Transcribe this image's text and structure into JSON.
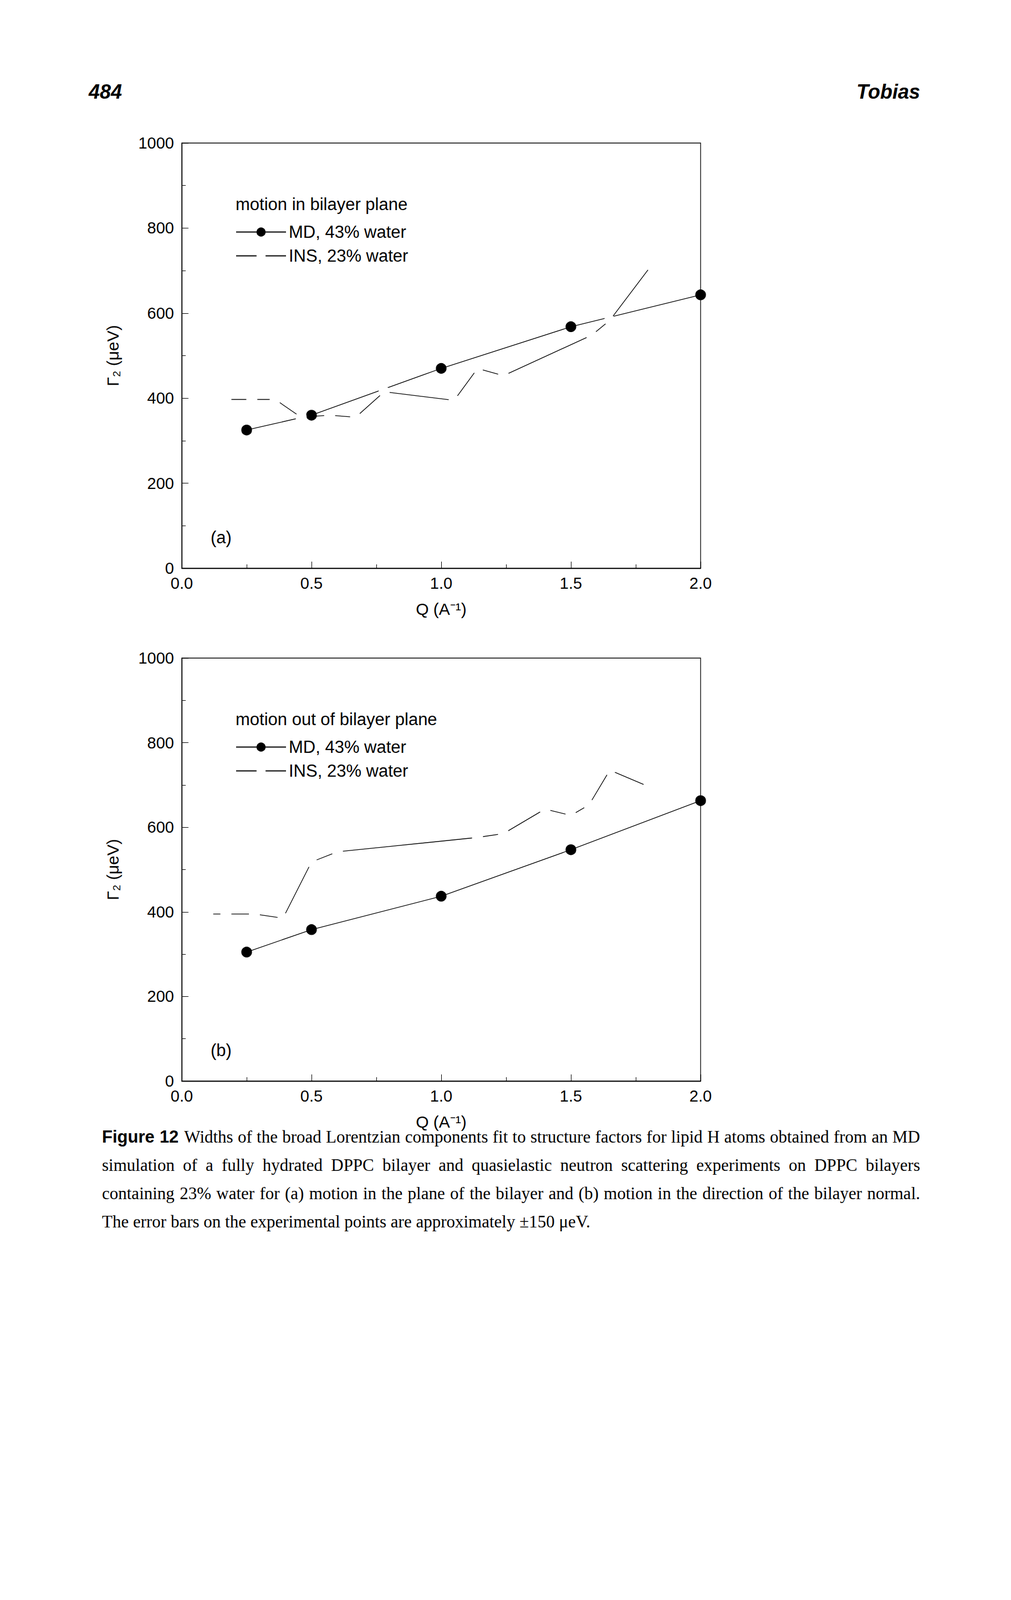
{
  "page": {
    "number": "484",
    "author": "Tobias"
  },
  "chart_data": [
    {
      "type": "line",
      "title": "motion in bilayer plane",
      "annotation": "(a)",
      "x_label": "Q (A⁻¹)",
      "y_label": "Γ₂ (μeV)",
      "xlim": [
        0,
        2
      ],
      "xticks": [
        {
          "value": 0,
          "label": "0.0"
        },
        {
          "value": 0.5,
          "label": "0.5"
        },
        {
          "value": 1,
          "label": "1.0"
        },
        {
          "value": 1.5,
          "label": "1.5"
        },
        {
          "value": 2,
          "label": "2.0"
        }
      ],
      "ylim": [
        0,
        1000
      ],
      "yticks": [
        0,
        200,
        400,
        600,
        800,
        1000
      ],
      "legend": "upper left",
      "series": [
        {
          "name": "MD, 43% water",
          "color": "#000000",
          "marker": "filled_circle",
          "line_style": "solid",
          "x": [
            0.25,
            0.5,
            1.0,
            1.5,
            2.0
          ],
          "values": [
            325,
            360,
            470,
            568,
            643
          ]
        },
        {
          "name": "INS, 23% water",
          "color": "#000000",
          "marker": "open_circle",
          "line_style": "solid",
          "x": [
            0.17,
            0.27,
            0.36,
            0.46,
            0.57,
            0.67,
            0.78,
            1.05,
            1.14,
            1.24,
            1.58,
            1.65,
            1.81
          ],
          "values": [
            397,
            397,
            397,
            355,
            360,
            355,
            415,
            395,
            470,
            453,
            548,
            583,
            712
          ]
        }
      ]
    },
    {
      "type": "line",
      "title": "motion out of bilayer plane",
      "annotation": "(b)",
      "x_label": "Q (A⁻¹)",
      "y_label": "Γ₂ (μeV)",
      "xlim": [
        0,
        2
      ],
      "xticks": [
        {
          "value": 0,
          "label": "0.0"
        },
        {
          "value": 0.5,
          "label": "0.5"
        },
        {
          "value": 1,
          "label": "1.0"
        },
        {
          "value": 1.5,
          "label": "1.5"
        },
        {
          "value": 2,
          "label": "2.0"
        }
      ],
      "ylim": [
        0,
        1000
      ],
      "yticks": [
        0,
        200,
        400,
        600,
        800,
        1000
      ],
      "legend": "upper left",
      "series": [
        {
          "name": "MD, 43% water",
          "color": "#000000",
          "marker": "filled_circle",
          "line_style": "solid",
          "x": [
            0.25,
            0.5,
            1.0,
            1.5,
            2.0
          ],
          "values": [
            305,
            358,
            437,
            547,
            663
          ]
        },
        {
          "name": "INS, 23% water",
          "color": "#000000",
          "marker": "open_circle",
          "line_style": "solid",
          "x": [
            0.1,
            0.17,
            0.28,
            0.39,
            0.5,
            0.6,
            1.14,
            1.24,
            1.4,
            1.5,
            1.57,
            1.65,
            1.8
          ],
          "values": [
            395,
            395,
            395,
            385,
            518,
            542,
            576,
            585,
            643,
            628,
            653,
            735,
            696
          ]
        }
      ]
    }
  ],
  "caption": {
    "label": "Figure 12",
    "text": "Widths of the broad Lorentzian components fit to structure factors for lipid H atoms obtained from an MD simulation of a fully hydrated DPPC bilayer and quasielastic neutron scattering experiments on DPPC bilayers containing 23% water for (a) motion in the plane of the bilayer and (b) motion in the direction of the bilayer normal. The error bars on the experimental points are approximately ±150 μeV."
  }
}
